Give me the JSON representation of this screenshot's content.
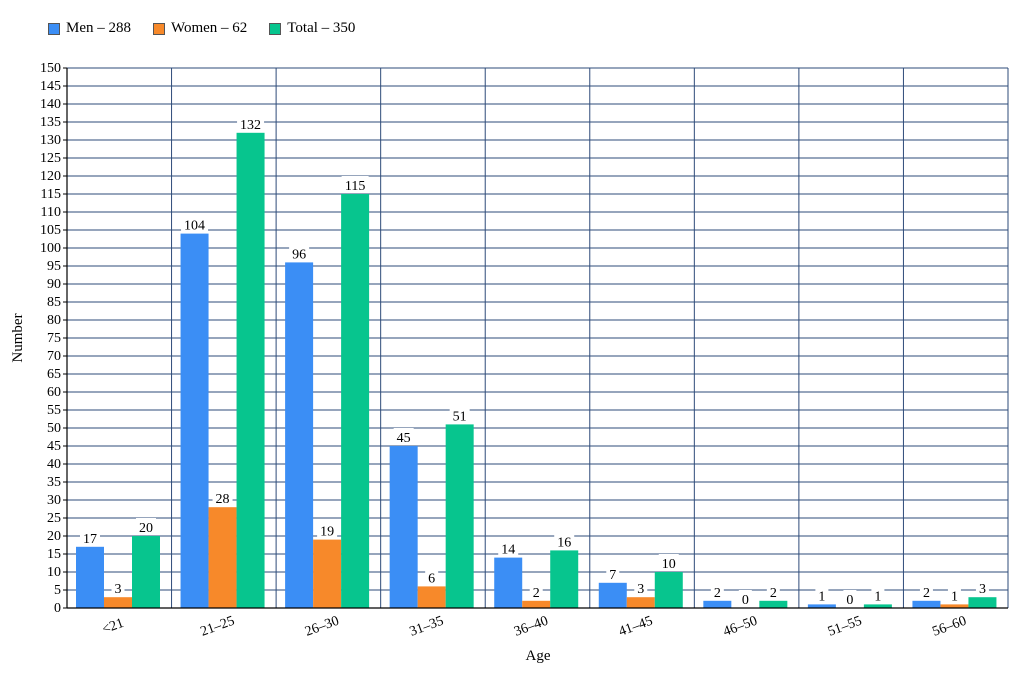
{
  "chart_data": {
    "type": "bar",
    "xlabel": "Age",
    "ylabel": "Number",
    "ylim": [
      0,
      150
    ],
    "ytick_step": 5,
    "grid": true,
    "legend_position": "top-left",
    "categories": [
      "<21",
      "21–25",
      "26–30",
      "31–35",
      "36–40",
      "41–45",
      "46–50",
      "51–55",
      "56–60"
    ],
    "series": [
      {
        "name": "Men – 288",
        "color": "#3b8ef5",
        "values": [
          17,
          104,
          96,
          45,
          14,
          7,
          2,
          1,
          2
        ]
      },
      {
        "name": "Women – 62",
        "color": "#f7892a",
        "values": [
          3,
          28,
          19,
          6,
          2,
          3,
          0,
          0,
          1
        ]
      },
      {
        "name": "Total – 350",
        "color": "#07c58e",
        "values": [
          20,
          132,
          115,
          51,
          16,
          10,
          2,
          1,
          3
        ]
      }
    ]
  }
}
